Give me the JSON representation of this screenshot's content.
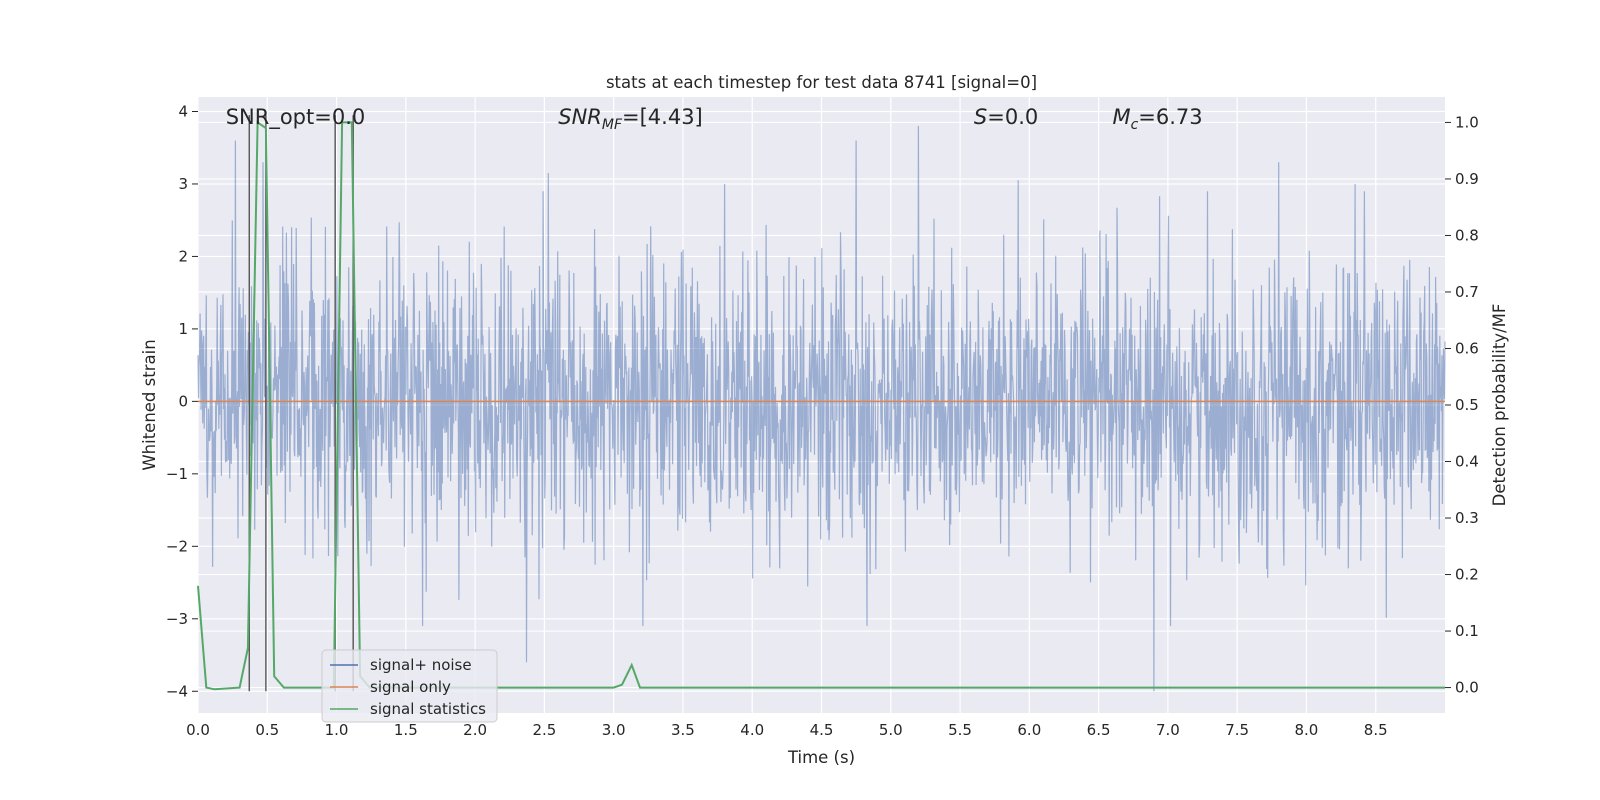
{
  "chart_data": {
    "type": "line",
    "title": "stats at each timestep for test data 8741 [signal=0]",
    "xlabel": "Time (s)",
    "ylabel": "Whitened strain",
    "y2label": "Detection probability/MF",
    "xlim": [
      0.0,
      9.0
    ],
    "ylim": [
      -4.3,
      4.2
    ],
    "y2lim": [
      -0.045,
      1.045
    ],
    "xticks": [
      "0.0",
      "0.5",
      "1.0",
      "1.5",
      "2.0",
      "2.5",
      "3.0",
      "3.5",
      "4.0",
      "4.5",
      "5.0",
      "5.5",
      "6.0",
      "6.5",
      "7.0",
      "7.5",
      "8.0",
      "8.5"
    ],
    "yticks": [
      "4",
      "3",
      "2",
      "1",
      "0",
      "−1",
      "−2",
      "−3",
      "−4"
    ],
    "y2ticks": [
      "1.0",
      "0.9",
      "0.8",
      "0.7",
      "0.6",
      "0.5",
      "0.4",
      "0.3",
      "0.2",
      "0.1",
      "0.0"
    ],
    "grid": true,
    "legend_position": "lower-left",
    "annotations": [
      {
        "label": "SNR_opt=0.0",
        "x": 0.2
      },
      {
        "label": "SNR_MF=[4.43]",
        "x": 2.6
      },
      {
        "label": "S=0.0",
        "x": 5.6
      },
      {
        "label": "M_c=6.73",
        "x": 6.6
      }
    ],
    "series": [
      {
        "name": "signal+ noise",
        "color": "#4c72b0",
        "axis": "left",
        "description_values": "Gaussian-like whitened noise, amplitude mostly within ±2.5, peaks up to ~3.8 and down to ~-4.0 near t=6.9",
        "peaks": [
          [
            0.27,
            3.6
          ],
          [
            0.47,
            3.3
          ],
          [
            2.53,
            3.15
          ],
          [
            3.8,
            3.0
          ],
          [
            4.75,
            3.6
          ],
          [
            5.2,
            3.8
          ],
          [
            5.92,
            3.05
          ],
          [
            6.9,
            -4.0
          ],
          [
            2.37,
            -3.6
          ],
          [
            7.8,
            3.3
          ],
          [
            8.35,
            3.0
          ]
        ]
      },
      {
        "name": "signal only",
        "color": "#dd8452",
        "axis": "left",
        "x": [
          0.0,
          9.0
        ],
        "y": [
          0.0,
          0.0
        ]
      },
      {
        "name": "signal statistics",
        "color": "#55a868",
        "axis": "right",
        "x": [
          0.0,
          0.06,
          0.12,
          0.3,
          0.36,
          0.43,
          0.49,
          0.55,
          0.62,
          0.68,
          0.98,
          1.04,
          1.11,
          1.17,
          1.24,
          1.3,
          3.0,
          3.06,
          3.13,
          3.19,
          3.25,
          9.0
        ],
        "y": [
          0.18,
          0.0,
          -0.003,
          0.0,
          0.07,
          1.0,
          0.99,
          0.02,
          0.0,
          0.0,
          0.0,
          1.0,
          1.0,
          0.02,
          0.0,
          0.0,
          0.0,
          0.005,
          0.04,
          0.0,
          0.0,
          0.0
        ]
      }
    ],
    "vertical_markers": [
      0.37,
      0.49,
      0.99,
      1.12
    ]
  },
  "legend": {
    "items": [
      {
        "label": "signal+ noise",
        "color": "#4c72b0"
      },
      {
        "label": "signal only",
        "color": "#dd8452"
      },
      {
        "label": "signal statistics",
        "color": "#55a868"
      }
    ]
  }
}
